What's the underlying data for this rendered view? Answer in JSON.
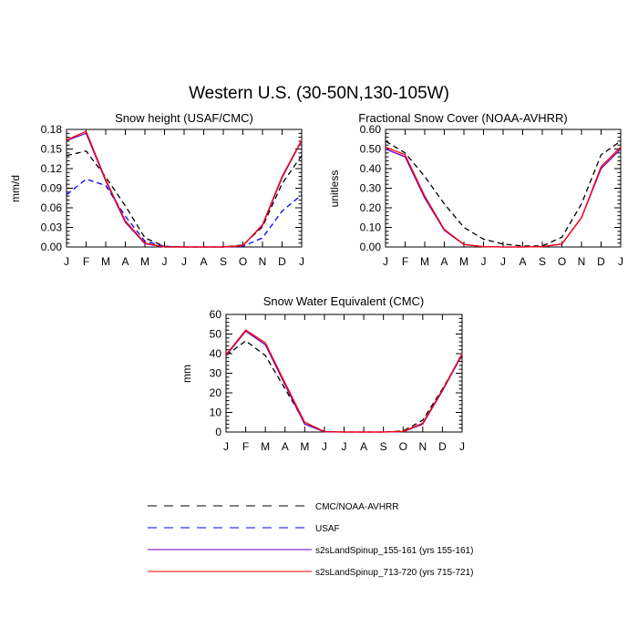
{
  "figure": {
    "title": "Western U.S. (30-50N,130-105W)"
  },
  "legend": {
    "entries": [
      {
        "label": "CMC/NOAA-AVHRR",
        "color": "#000000",
        "dash": "dashed"
      },
      {
        "label": "USAF",
        "color": "#0000ff",
        "dash": "dashed"
      },
      {
        "label": "s2sLandSpinup_155-161 (yrs 155-161)",
        "color": "#6a00c8",
        "dash": "solid"
      },
      {
        "label": "s2sLandSpinup_713-720 (yrs 715-721)",
        "color": "#ff0000",
        "dash": "solid"
      }
    ]
  },
  "chart_data": [
    {
      "type": "line",
      "title": "Snow height (USAF/CMC)",
      "xlabel": "",
      "ylabel": "mm/d",
      "categories": [
        "J",
        "F",
        "M",
        "A",
        "M",
        "J",
        "J",
        "A",
        "S",
        "O",
        "N",
        "D",
        "J"
      ],
      "ylim": [
        0,
        0.18
      ],
      "yticks": [
        "0.00",
        "0.03",
        "0.06",
        "0.09",
        "0.12",
        "0.15",
        "0.18"
      ],
      "grid": false,
      "series": [
        {
          "name": "CMC/NOAA-AVHRR",
          "color": "#000000",
          "dash": "dashed",
          "values": [
            0.14,
            0.147,
            0.107,
            0.063,
            0.014,
            0.001,
            0,
            0,
            0,
            0.003,
            0.031,
            0.097,
            0.14
          ]
        },
        {
          "name": "USAF",
          "color": "#0000ff",
          "dash": "dashed",
          "values": [
            0.08,
            0.104,
            0.094,
            0.047,
            0.009,
            0.001,
            0,
            0,
            0,
            0.001,
            0.014,
            0.055,
            0.08
          ]
        },
        {
          "name": "s2sLandSpinup_155-161 (yrs 155-161)",
          "color": "#6a00c8",
          "dash": "solid",
          "values": [
            0.163,
            0.174,
            0.101,
            0.038,
            0.005,
            0,
            0,
            0,
            0,
            0.002,
            0.033,
            0.106,
            0.163
          ]
        },
        {
          "name": "s2sLandSpinup_713-720 (yrs 715-721)",
          "color": "#ff0000",
          "dash": "solid",
          "values": [
            0.164,
            0.177,
            0.103,
            0.04,
            0.006,
            0,
            0,
            0,
            0,
            0.002,
            0.034,
            0.108,
            0.164
          ]
        }
      ]
    },
    {
      "type": "line",
      "title": "Fractional Snow Cover (NOAA-AVHRR)",
      "xlabel": "",
      "ylabel": "unitless",
      "categories": [
        "J",
        "F",
        "M",
        "A",
        "M",
        "J",
        "J",
        "A",
        "S",
        "O",
        "N",
        "D",
        "J"
      ],
      "ylim": [
        0,
        0.6
      ],
      "yticks": [
        "0.00",
        "0.10",
        "0.20",
        "0.30",
        "0.40",
        "0.50",
        "0.60"
      ],
      "grid": false,
      "series": [
        {
          "name": "CMC/NOAA-AVHRR",
          "color": "#000000",
          "dash": "dashed",
          "values": [
            0.54,
            0.48,
            0.36,
            0.22,
            0.1,
            0.04,
            0.015,
            0.005,
            0.005,
            0.05,
            0.22,
            0.47,
            0.54
          ]
        },
        {
          "name": "s2sLandSpinup_155-161 (yrs 155-161)",
          "color": "#6a00c8",
          "dash": "solid",
          "values": [
            0.5,
            0.46,
            0.25,
            0.085,
            0.012,
            0.002,
            0,
            0,
            0.002,
            0.015,
            0.15,
            0.4,
            0.5
          ]
        },
        {
          "name": "s2sLandSpinup_713-720 (yrs 715-721)",
          "color": "#ff0000",
          "dash": "solid",
          "values": [
            0.51,
            0.47,
            0.26,
            0.09,
            0.013,
            0.002,
            0,
            0,
            0.002,
            0.016,
            0.15,
            0.41,
            0.51
          ]
        }
      ]
    },
    {
      "type": "line",
      "title": "Snow Water Equivalent (CMC)",
      "xlabel": "",
      "ylabel": "mm",
      "categories": [
        "J",
        "F",
        "M",
        "A",
        "M",
        "J",
        "J",
        "A",
        "S",
        "O",
        "N",
        "D",
        "J"
      ],
      "ylim": [
        0,
        60
      ],
      "yticks": [
        "0",
        "10",
        "20",
        "30",
        "40",
        "50",
        "60"
      ],
      "grid": false,
      "series": [
        {
          "name": "CMC/NOAA-AVHRR",
          "color": "#000000",
          "dash": "dashed",
          "values": [
            39,
            46.5,
            39,
            22,
            5,
            0.3,
            0,
            0,
            0,
            0.5,
            6,
            22,
            39
          ]
        },
        {
          "name": "s2sLandSpinup_155-161 (yrs 155-161)",
          "color": "#6a00c8",
          "dash": "solid",
          "values": [
            39,
            51.5,
            44.5,
            24,
            4,
            0.1,
            0,
            0,
            0,
            0.2,
            4,
            21,
            39.5
          ]
        },
        {
          "name": "s2sLandSpinup_713-720 (yrs 715-721)",
          "color": "#ff0000",
          "dash": "solid",
          "values": [
            39.5,
            52,
            45.5,
            25,
            5,
            0.2,
            0,
            0,
            0,
            0.3,
            4.5,
            21.5,
            40
          ]
        }
      ]
    }
  ]
}
